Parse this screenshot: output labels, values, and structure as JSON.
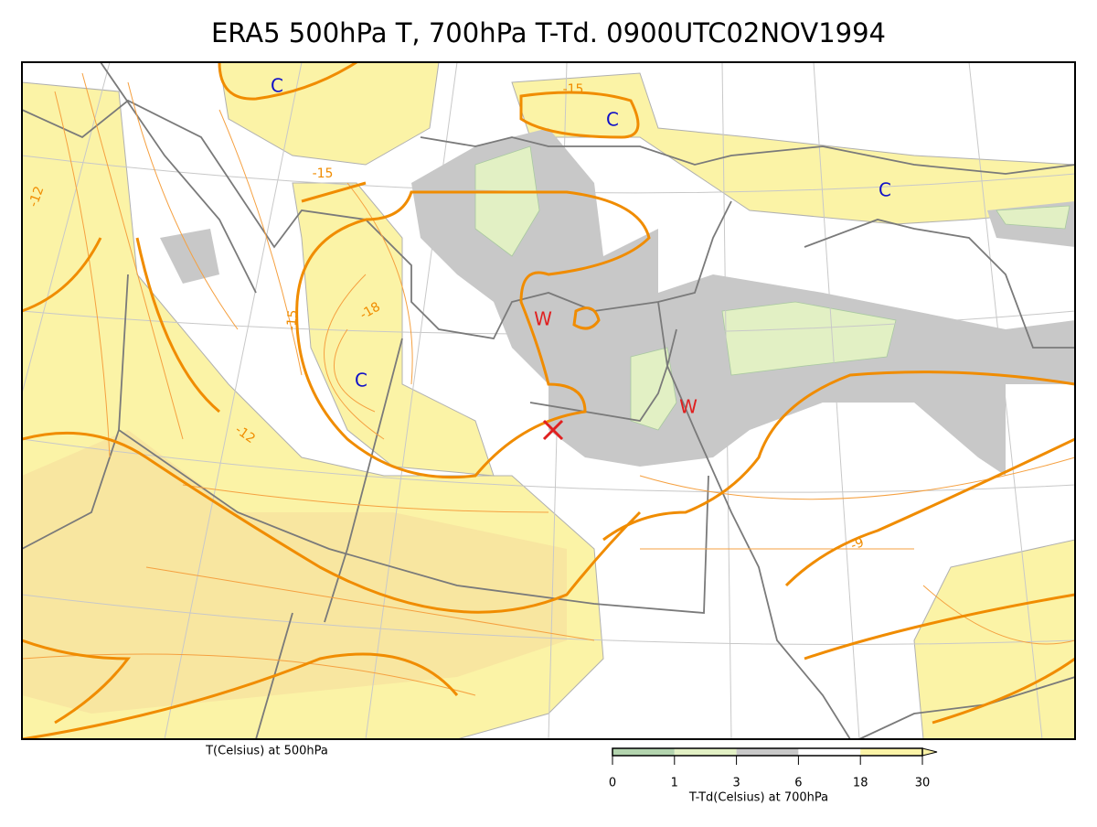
{
  "title": "ERA5 500hPa T, 700hPa T-Td. 0900UTC02NOV1994",
  "map": {
    "centers": [
      "C",
      "C",
      "C",
      "C",
      "W",
      "W"
    ],
    "contour_labels": [
      -15,
      -15,
      -12,
      -15,
      -18,
      -12,
      -9
    ]
  },
  "x_label": "T(Celsius) at 500hPa",
  "colorbar": {
    "label": "T-Td(Celsius) at 700hPa",
    "ticks": [
      0,
      1,
      3,
      6,
      18,
      30
    ],
    "colors": [
      "#b3d4ae",
      "#e2f0c4",
      "#c8c8c8",
      "#ffffff",
      "#fbf3a6"
    ]
  }
}
